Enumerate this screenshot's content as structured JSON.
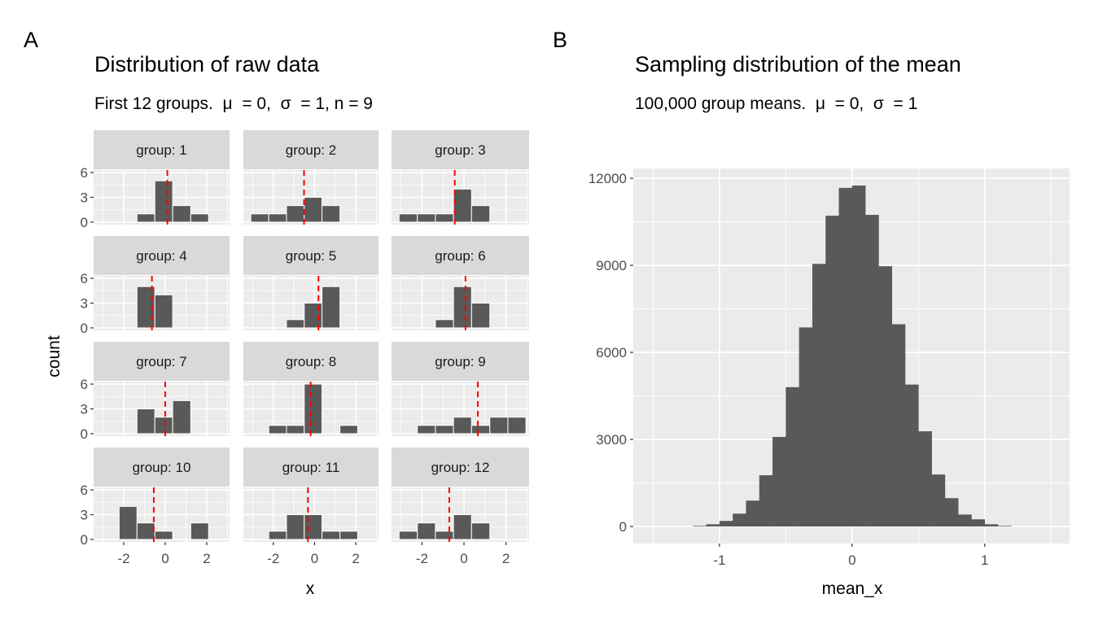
{
  "chart_data": [
    {
      "type": "bar",
      "panel_tag": "A",
      "title": "Distribution of raw data",
      "subtitle": "First 12 groups.  μ  = 0,  σ  = 1, n = 9",
      "xlabel": "x",
      "ylabel": "count",
      "facet_layout": "4 rows x 3 columns",
      "xlim": [
        -3.45,
        3.1
      ],
      "ylim": [
        -0.3,
        6.3
      ],
      "x_ticks": [
        -2,
        0,
        2
      ],
      "x_tick_labels": [
        "-2",
        "0",
        "2"
      ],
      "y_ticks": [
        0,
        3,
        6
      ],
      "y_tick_labels": [
        "0",
        "3",
        "6"
      ],
      "grid": true,
      "bin_edges": [
        -3.09,
        -2.22,
        -1.36,
        -0.5,
        0.36,
        1.23,
        2.09,
        2.95
      ],
      "bar_color": "#595959",
      "mean_line_color": "#ff0000",
      "mean_line_style": "dashed",
      "facets": [
        {
          "label": "group: 1",
          "counts": [
            0,
            0,
            1,
            5,
            2,
            1,
            0
          ],
          "mean": 0.1
        },
        {
          "label": "group: 2",
          "counts": [
            1,
            1,
            2,
            3,
            2,
            0,
            0
          ],
          "mean": -0.51
        },
        {
          "label": "group: 3",
          "counts": [
            1,
            1,
            1,
            4,
            2,
            0,
            0
          ],
          "mean": -0.44
        },
        {
          "label": "group: 4",
          "counts": [
            0,
            0,
            5,
            4,
            0,
            0,
            0
          ],
          "mean": -0.64
        },
        {
          "label": "group: 5",
          "counts": [
            0,
            0,
            1,
            3,
            5,
            0,
            0
          ],
          "mean": 0.19
        },
        {
          "label": "group: 6",
          "counts": [
            0,
            0,
            1,
            5,
            3,
            0,
            0
          ],
          "mean": 0.07
        },
        {
          "label": "group: 7",
          "counts": [
            0,
            0,
            3,
            2,
            4,
            0,
            0
          ],
          "mean": 0.0
        },
        {
          "label": "group: 8",
          "counts": [
            0,
            1,
            1,
            6,
            0,
            1,
            0
          ],
          "mean": -0.19
        },
        {
          "label": "group: 9",
          "counts": [
            0,
            1,
            1,
            2,
            1,
            2,
            2
          ],
          "mean": 0.66
        },
        {
          "label": "group: 10",
          "counts": [
            0,
            4,
            2,
            1,
            0,
            2,
            0
          ],
          "mean": -0.55
        },
        {
          "label": "group: 11",
          "counts": [
            0,
            1,
            3,
            3,
            1,
            1,
            0
          ],
          "mean": -0.32
        },
        {
          "label": "group: 12",
          "counts": [
            1,
            2,
            1,
            3,
            2,
            0,
            0
          ],
          "mean": -0.7
        }
      ]
    },
    {
      "type": "bar",
      "panel_tag": "B",
      "title": "Sampling distribution of the mean",
      "subtitle": "100,000 group means.  μ  = 0,  σ  = 1",
      "xlabel": "mean_x",
      "ylabel": "",
      "xlim": [
        -1.65,
        1.64
      ],
      "ylim": [
        -590,
        12340
      ],
      "x_ticks": [
        -1,
        0,
        1
      ],
      "x_tick_labels": [
        "-1",
        "0",
        "1"
      ],
      "y_ticks": [
        0,
        3000,
        6000,
        9000,
        12000
      ],
      "y_tick_labels": [
        "0",
        "3000",
        "6000",
        "9000",
        "12000"
      ],
      "grid": true,
      "bar_color": "#595959",
      "bin_edges": [
        -1.2,
        -1.1,
        -1.0,
        -0.9,
        -0.8,
        -0.7,
        -0.6,
        -0.5,
        -0.4,
        -0.3,
        -0.2,
        -0.1,
        0,
        0.1,
        0.2,
        0.3,
        0.4,
        0.5,
        0.6,
        0.7,
        0.8,
        0.9,
        1.0,
        1.1,
        1.2
      ],
      "counts": [
        20,
        75,
        190,
        440,
        890,
        1765,
        3085,
        4800,
        6860,
        9050,
        10710,
        11670,
        11750,
        10740,
        8970,
        6970,
        4890,
        3280,
        1790,
        975,
        410,
        245,
        75,
        20
      ]
    }
  ]
}
